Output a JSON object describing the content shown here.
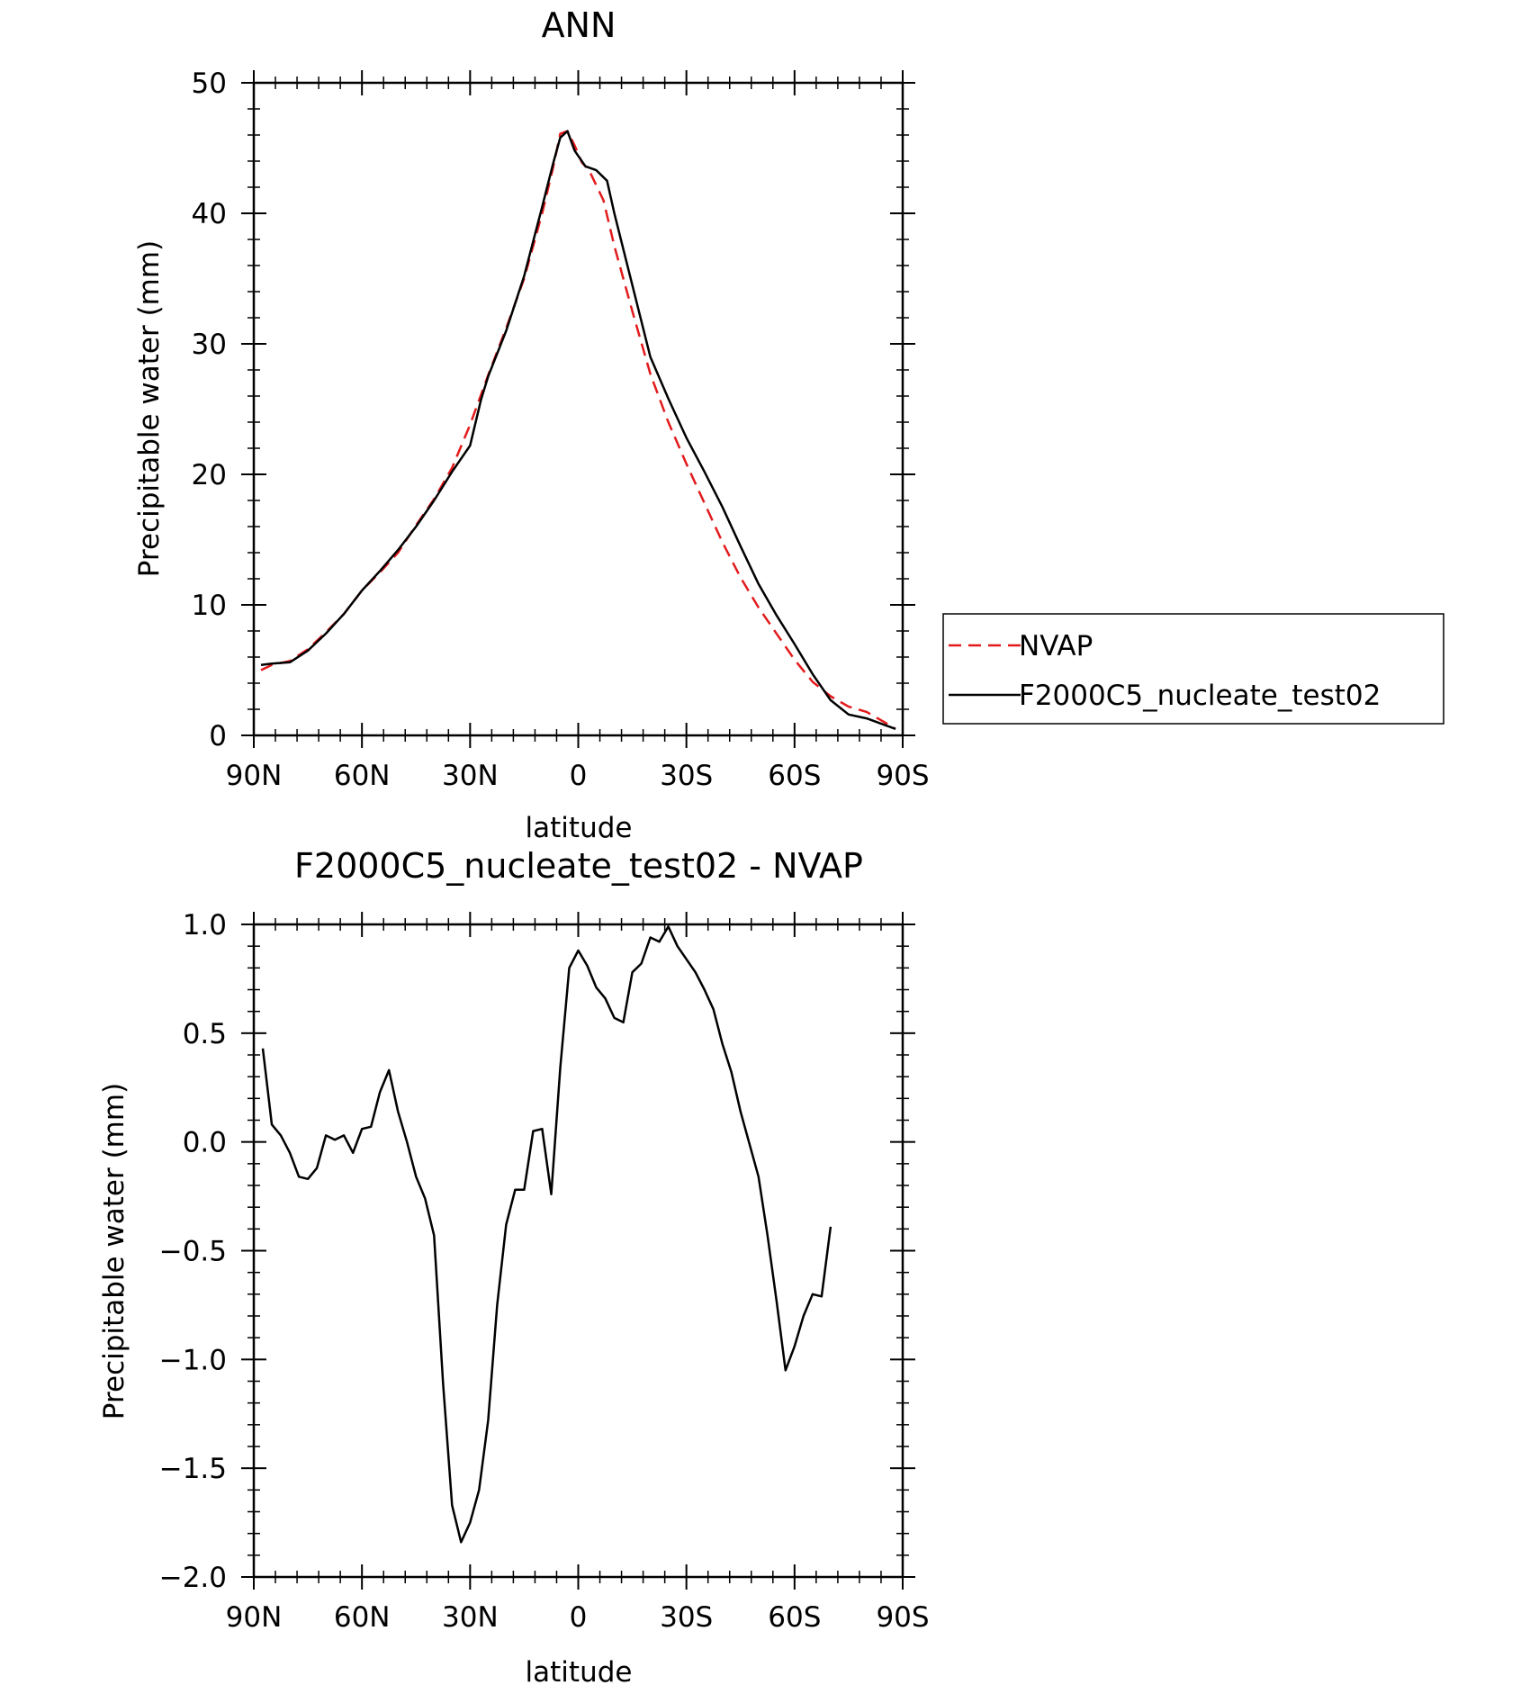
{
  "chart_data": [
    {
      "type": "line",
      "title": "ANN",
      "xlabel": "latitude",
      "ylabel": "Precipitable water (mm)",
      "xlim": [
        90,
        -90
      ],
      "ylim": [
        0,
        50
      ],
      "x_ticks": [
        {
          "value": 90,
          "label": "90N"
        },
        {
          "value": 60,
          "label": "60N"
        },
        {
          "value": 30,
          "label": "30N"
        },
        {
          "value": 0,
          "label": "0"
        },
        {
          "value": -30,
          "label": "30S"
        },
        {
          "value": -60,
          "label": "60S"
        },
        {
          "value": -90,
          "label": "90S"
        }
      ],
      "y_ticks": [
        {
          "value": 0,
          "label": "0"
        },
        {
          "value": 10,
          "label": "10"
        },
        {
          "value": 20,
          "label": "20"
        },
        {
          "value": 30,
          "label": "30"
        },
        {
          "value": 40,
          "label": "40"
        },
        {
          "value": 50,
          "label": "50"
        }
      ],
      "legend": {
        "position": "right"
      },
      "series": [
        {
          "name": "NVAP",
          "color": "#e31a1c",
          "dash": "dashed",
          "points": [
            [
              88,
              5.0
            ],
            [
              85,
              5.4
            ],
            [
              80,
              5.7
            ],
            [
              75,
              6.6
            ],
            [
              70,
              7.9
            ],
            [
              65,
              9.3
            ],
            [
              60,
              11.1
            ],
            [
              55,
              12.5
            ],
            [
              50,
              14.0
            ],
            [
              45,
              16.1
            ],
            [
              40,
              18.1
            ],
            [
              35,
              20.5
            ],
            [
              30,
              23.8
            ],
            [
              25,
              27.6
            ],
            [
              20,
              31.2
            ],
            [
              15,
              35.0
            ],
            [
              10,
              40.0
            ],
            [
              7,
              43.5
            ],
            [
              5,
              46.1
            ],
            [
              3,
              46.3
            ],
            [
              1,
              45.2
            ],
            [
              -1,
              43.9
            ],
            [
              -3,
              43.3
            ],
            [
              -7,
              41.0
            ],
            [
              -10,
              37.5
            ],
            [
              -15,
              32.5
            ],
            [
              -20,
              27.7
            ],
            [
              -25,
              24.0
            ],
            [
              -30,
              20.8
            ],
            [
              -35,
              17.8
            ],
            [
              -40,
              14.8
            ],
            [
              -45,
              12.1
            ],
            [
              -50,
              9.8
            ],
            [
              -55,
              7.8
            ],
            [
              -60,
              5.8
            ],
            [
              -65,
              4.1
            ],
            [
              -70,
              3.0
            ],
            [
              -75,
              2.2
            ],
            [
              -80,
              1.8
            ],
            [
              -85,
              1.0
            ],
            [
              -88,
              0.5
            ]
          ]
        },
        {
          "name": "F2000C5_nucleate_test02",
          "color": "#000000",
          "dash": "solid",
          "points": [
            [
              88,
              5.4
            ],
            [
              85,
              5.5
            ],
            [
              80,
              5.6
            ],
            [
              75,
              6.5
            ],
            [
              70,
              7.8
            ],
            [
              65,
              9.3
            ],
            [
              60,
              11.1
            ],
            [
              55,
              12.6
            ],
            [
              50,
              14.2
            ],
            [
              45,
              16.0
            ],
            [
              40,
              18.0
            ],
            [
              35,
              20.2
            ],
            [
              30,
              22.2
            ],
            [
              27,
              25.7
            ],
            [
              25,
              27.5
            ],
            [
              20,
              31.0
            ],
            [
              15,
              35.2
            ],
            [
              10,
              40.5
            ],
            [
              7,
              43.8
            ],
            [
              5,
              45.8
            ],
            [
              3,
              46.3
            ],
            [
              1,
              44.8
            ],
            [
              -2,
              43.6
            ],
            [
              -5,
              43.3
            ],
            [
              -8,
              42.5
            ],
            [
              -10,
              40.0
            ],
            [
              -15,
              34.5
            ],
            [
              -20,
              29.0
            ],
            [
              -25,
              25.8
            ],
            [
              -30,
              22.8
            ],
            [
              -35,
              20.2
            ],
            [
              -40,
              17.5
            ],
            [
              -45,
              14.5
            ],
            [
              -50,
              11.6
            ],
            [
              -55,
              9.2
            ],
            [
              -60,
              7.0
            ],
            [
              -65,
              4.7
            ],
            [
              -70,
              2.7
            ],
            [
              -75,
              1.6
            ],
            [
              -80,
              1.3
            ],
            [
              -85,
              0.8
            ],
            [
              -88,
              0.5
            ]
          ]
        }
      ]
    },
    {
      "type": "line",
      "title": "F2000C5_nucleate_test02 - NVAP",
      "xlabel": "latitude",
      "ylabel": "Precipitable water (mm)",
      "xlim": [
        90,
        -90
      ],
      "ylim": [
        -2.0,
        1.0
      ],
      "x_ticks": [
        {
          "value": 90,
          "label": "90N"
        },
        {
          "value": 60,
          "label": "60N"
        },
        {
          "value": 30,
          "label": "30N"
        },
        {
          "value": 0,
          "label": "0"
        },
        {
          "value": -30,
          "label": "30S"
        },
        {
          "value": -60,
          "label": "60S"
        },
        {
          "value": -90,
          "label": "90S"
        }
      ],
      "y_ticks": [
        {
          "value": -2.0,
          "label": "−2.0"
        },
        {
          "value": -1.5,
          "label": "−1.5"
        },
        {
          "value": -1.0,
          "label": "−1.0"
        },
        {
          "value": -0.5,
          "label": "−0.5"
        },
        {
          "value": 0.0,
          "label": "0.0"
        },
        {
          "value": 0.5,
          "label": "0.5"
        },
        {
          "value": 1.0,
          "label": "1.0"
        }
      ],
      "series": [
        {
          "color": "#000000",
          "dash": "solid",
          "points": [
            [
              87.5,
              0.43
            ],
            [
              85,
              0.08
            ],
            [
              82.5,
              0.03
            ],
            [
              80,
              -0.05
            ],
            [
              77.5,
              -0.16
            ],
            [
              75,
              -0.17
            ],
            [
              72.5,
              -0.12
            ],
            [
              70,
              0.03
            ],
            [
              67.5,
              0.01
            ],
            [
              65,
              0.03
            ],
            [
              62.5,
              -0.05
            ],
            [
              60,
              0.06
            ],
            [
              57.5,
              0.07
            ],
            [
              55,
              0.23
            ],
            [
              52.5,
              0.33
            ],
            [
              50,
              0.14
            ],
            [
              47.5,
              0.0
            ],
            [
              45,
              -0.16
            ],
            [
              42.5,
              -0.26
            ],
            [
              40,
              -0.43
            ],
            [
              37.5,
              -1.11
            ],
            [
              35,
              -1.67
            ],
            [
              32.5,
              -1.84
            ],
            [
              30,
              -1.75
            ],
            [
              27.5,
              -1.6
            ],
            [
              25,
              -1.28
            ],
            [
              22.5,
              -0.75
            ],
            [
              20,
              -0.38
            ],
            [
              17.5,
              -0.22
            ],
            [
              15,
              -0.22
            ],
            [
              12.5,
              0.05
            ],
            [
              10,
              0.06
            ],
            [
              7.5,
              -0.24
            ],
            [
              5,
              0.34
            ],
            [
              2.5,
              0.8
            ],
            [
              0,
              0.88
            ],
            [
              -2.5,
              0.81
            ],
            [
              -5,
              0.71
            ],
            [
              -7.5,
              0.66
            ],
            [
              -10,
              0.57
            ],
            [
              -12.5,
              0.55
            ],
            [
              -15,
              0.78
            ],
            [
              -17.5,
              0.82
            ],
            [
              -20,
              0.94
            ],
            [
              -22.5,
              0.92
            ],
            [
              -25,
              0.99
            ],
            [
              -27.5,
              0.9
            ],
            [
              -30,
              0.84
            ],
            [
              -32.5,
              0.78
            ],
            [
              -35,
              0.7
            ],
            [
              -37.5,
              0.61
            ],
            [
              -40,
              0.45
            ],
            [
              -42.5,
              0.32
            ],
            [
              -45,
              0.14
            ],
            [
              -47.5,
              -0.01
            ],
            [
              -50,
              -0.16
            ],
            [
              -52.5,
              -0.43
            ],
            [
              -55,
              -0.73
            ],
            [
              -57.5,
              -1.05
            ],
            [
              -60,
              -0.94
            ],
            [
              -62.5,
              -0.8
            ],
            [
              -65,
              -0.7
            ],
            [
              -67.5,
              -0.71
            ],
            [
              -70,
              -0.39
            ]
          ]
        }
      ]
    }
  ]
}
